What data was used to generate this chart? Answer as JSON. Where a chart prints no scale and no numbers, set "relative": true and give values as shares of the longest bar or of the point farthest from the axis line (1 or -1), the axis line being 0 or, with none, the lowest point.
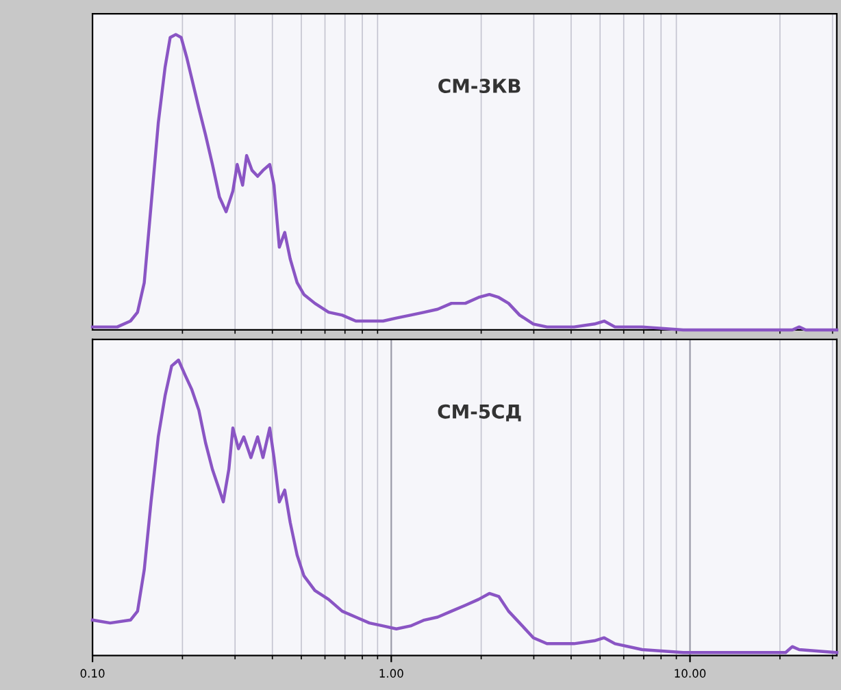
{
  "chart_data": [
    {
      "type": "line",
      "relative": true,
      "log": "x",
      "xlim": [
        0.1,
        31
      ],
      "tick_labels": false,
      "grid": true,
      "annotations": [
        "СМ-3КВ"
      ],
      "x": [
        0.1,
        0.121,
        0.134,
        0.1415,
        0.149,
        0.157,
        0.166,
        0.175,
        0.182,
        0.19,
        0.198,
        0.207,
        0.215,
        0.227,
        0.239,
        0.252,
        0.266,
        0.28,
        0.295,
        0.305,
        0.318,
        0.328,
        0.342,
        0.357,
        0.372,
        0.392,
        0.405,
        0.422,
        0.44,
        0.459,
        0.484,
        0.51,
        0.555,
        0.617,
        0.685,
        0.761,
        0.845,
        0.939,
        1.04,
        1.16,
        1.29,
        1.43,
        1.59,
        1.77,
        1.96,
        2.13,
        2.29,
        2.47,
        2.69,
        2.99,
        3.32,
        4.09,
        4.79,
        5.16,
        5.61,
        6.92,
        9.49,
        16.1,
        22.0,
        23.2,
        24.4,
        31
      ],
      "series": [
        {
          "color": "#8a55c4",
          "values": [
            0.01,
            0.01,
            0.03,
            0.06,
            0.16,
            0.42,
            0.7,
            0.89,
            0.99,
            1,
            0.99,
            0.92,
            0.85,
            0.75,
            0.66,
            0.56,
            0.45,
            0.4,
            0.47,
            0.56,
            0.49,
            0.59,
            0.54,
            0.52,
            0.54,
            0.56,
            0.49,
            0.28,
            0.33,
            0.24,
            0.16,
            0.12,
            0.09,
            0.06,
            0.05,
            0.03,
            0.03,
            0.03,
            0.04,
            0.05,
            0.06,
            0.07,
            0.09,
            0.09,
            0.11,
            0.12,
            0.11,
            0.09,
            0.05,
            0.02,
            0.01,
            0.01,
            0.02,
            0.03,
            0.01,
            0.01,
            0,
            0,
            0,
            0.01,
            0,
            0
          ]
        }
      ]
    },
    {
      "type": "line",
      "relative": true,
      "log": "x",
      "xlim": [
        0.1,
        31
      ],
      "xticks": [
        {
          "value": 0.1,
          "label": "0.10"
        },
        {
          "value": 1,
          "label": "1.00"
        },
        {
          "value": 10,
          "label": "10.00"
        }
      ],
      "tick_labels": "x",
      "grid": true,
      "annotations": [
        "СМ-5СД"
      ],
      "x": [
        0.1,
        0.1146,
        0.134,
        0.1415,
        0.149,
        0.157,
        0.166,
        0.175,
        0.184,
        0.194,
        0.204,
        0.215,
        0.227,
        0.239,
        0.252,
        0.266,
        0.274,
        0.286,
        0.295,
        0.308,
        0.321,
        0.339,
        0.357,
        0.372,
        0.392,
        0.405,
        0.422,
        0.44,
        0.459,
        0.484,
        0.51,
        0.555,
        0.617,
        0.685,
        0.761,
        0.845,
        0.939,
        1.04,
        1.16,
        1.29,
        1.43,
        1.59,
        1.77,
        1.96,
        2.13,
        2.29,
        2.47,
        2.69,
        2.99,
        3.32,
        4.09,
        4.79,
        5.16,
        5.61,
        6.92,
        9.49,
        16.1,
        20.9,
        22.0,
        23.2,
        31
      ],
      "series": [
        {
          "color": "#8a55c4",
          "values": [
            0.12,
            0.11,
            0.12,
            0.15,
            0.29,
            0.52,
            0.74,
            0.88,
            0.98,
            1,
            0.95,
            0.9,
            0.83,
            0.72,
            0.63,
            0.56,
            0.52,
            0.63,
            0.77,
            0.7,
            0.74,
            0.67,
            0.74,
            0.67,
            0.77,
            0.67,
            0.52,
            0.56,
            0.45,
            0.34,
            0.27,
            0.22,
            0.19,
            0.15,
            0.13,
            0.11,
            0.1,
            0.09,
            0.1,
            0.12,
            0.13,
            0.15,
            0.17,
            0.19,
            0.21,
            0.2,
            0.15,
            0.11,
            0.06,
            0.04,
            0.04,
            0.05,
            0.06,
            0.04,
            0.02,
            0.01,
            0.01,
            0.01,
            0.03,
            0.02,
            0.01
          ]
        }
      ]
    }
  ]
}
